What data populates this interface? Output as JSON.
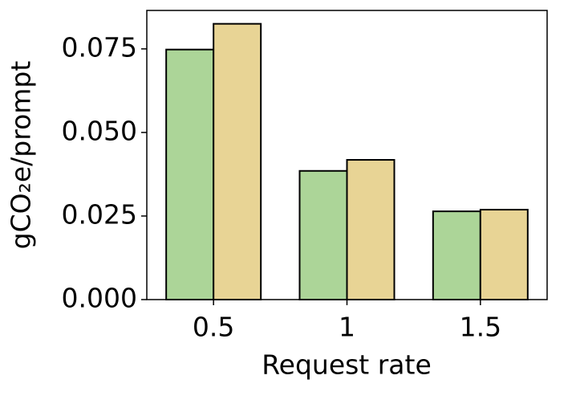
{
  "chart_data": {
    "type": "bar",
    "xlabel": "Request rate",
    "ylabel": "gCO₂e/prompt",
    "categories": [
      "0.5",
      "1",
      "1.5"
    ],
    "series": [
      {
        "color": "#acd598",
        "values": [
          0.0748,
          0.0385,
          0.0264
        ]
      },
      {
        "color": "#e8d495",
        "values": [
          0.0825,
          0.0418,
          0.0269
        ]
      }
    ],
    "ylim": [
      0,
      0.0865
    ],
    "yticks": [
      {
        "value": 0,
        "label": "0.000"
      },
      {
        "value": 0.025,
        "label": "0.025"
      },
      {
        "value": 0.05,
        "label": "0.050"
      },
      {
        "value": 0.075,
        "label": "0.075"
      }
    ]
  }
}
